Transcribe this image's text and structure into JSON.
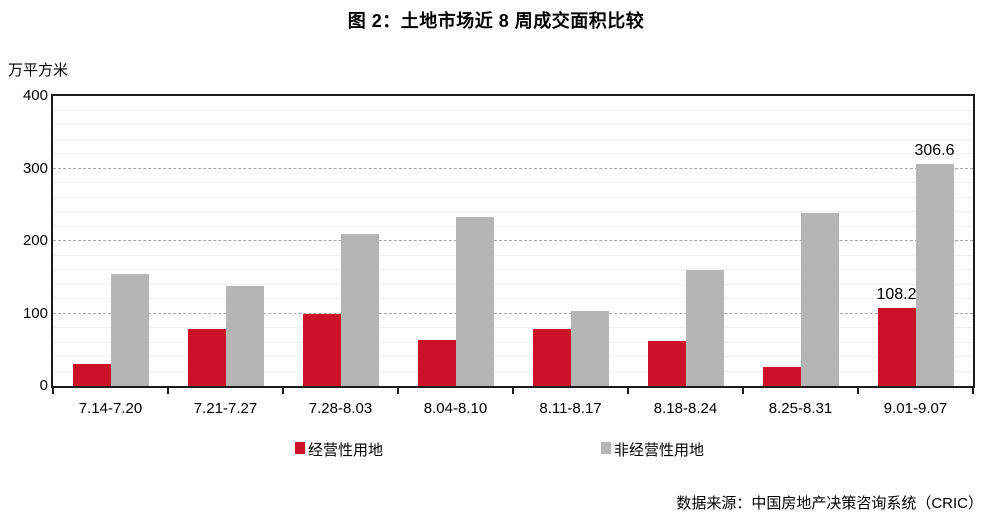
{
  "chart": {
    "title": "图 2：土地市场近 8 周成交面积比较",
    "unit": "万平方米",
    "source": "数据来源：中国房地产决策咨询系统（CRIC）"
  },
  "chart_data": {
    "type": "bar",
    "title": "图 2：土地市场近 8 周成交面积比较",
    "xlabel": "",
    "ylabel": "万平方米",
    "ylim": [
      0,
      400
    ],
    "yticks": [
      0,
      100,
      200,
      300,
      400
    ],
    "grid": "horizontal dashed major lines every 100, faint minor lines every 20",
    "legend_position": "bottom",
    "categories": [
      "7.14-7.20",
      "7.21-7.27",
      "7.28-8.03",
      "8.04-8.10",
      "8.11-8.17",
      "8.18-8.24",
      "8.25-8.31",
      "9.01-9.07"
    ],
    "series": [
      {
        "name": "经营性用地",
        "color": "#CC1228",
        "values": [
          31,
          78,
          99,
          63,
          78,
          62,
          26,
          108.2
        ],
        "labels": [
          "",
          "",
          "",
          "",
          "",
          "",
          "",
          "108.2"
        ]
      },
      {
        "name": "非经营性用地",
        "color": "#B5B5B5",
        "values": [
          154,
          138,
          210,
          233,
          103,
          160,
          238,
          306.6
        ],
        "labels": [
          "",
          "",
          "",
          "",
          "",
          "",
          "",
          "306.6"
        ]
      }
    ]
  },
  "colors": {
    "series_red": "#CC1228",
    "series_gray": "#B5B5B5",
    "grid_major": "#a6a6a6",
    "grid_minor": "#f0f0f0",
    "axis": "#1c1c1c",
    "text": "#000000"
  }
}
